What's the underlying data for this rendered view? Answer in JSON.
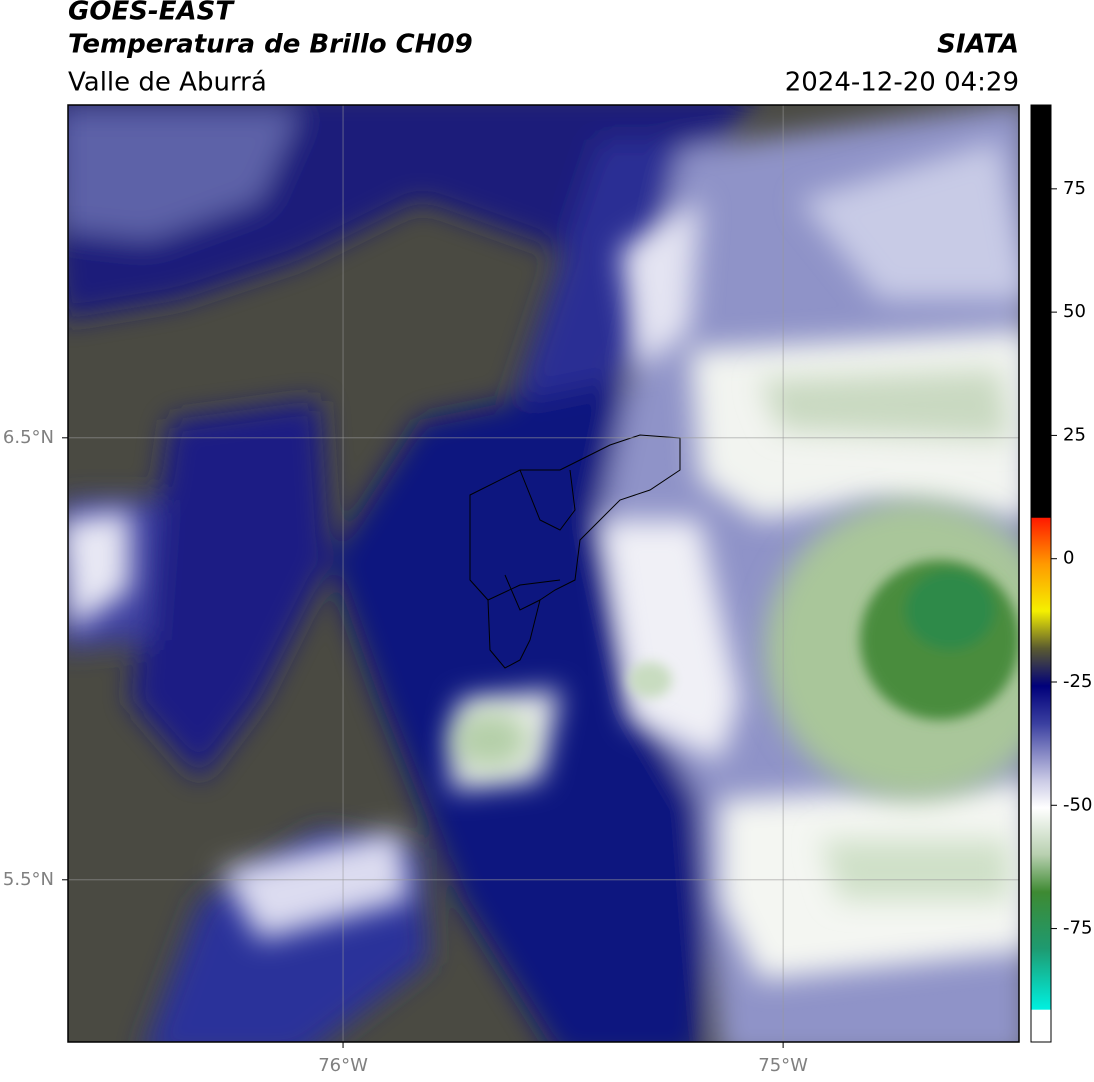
{
  "header": {
    "title": "GOES-EAST",
    "subtitle": "Temperatura de Brillo CH09",
    "region": "Valle de Aburrá",
    "source": "SIATA",
    "timestamp": "2024-12-20 04:29"
  },
  "map": {
    "lonlim": [
      -76.625,
      -74.464
    ],
    "latlim": [
      5.133,
      7.253
    ],
    "lonticks": [
      {
        "value": -76,
        "label": "76°W"
      },
      {
        "value": -75,
        "label": "75°W"
      }
    ],
    "latticks": [
      {
        "value": 6.5,
        "label": "6.5°N"
      },
      {
        "value": 5.5,
        "label": "5.5°N"
      }
    ]
  },
  "colorbar": {
    "lim": [
      -98,
      92
    ],
    "ticks": [
      75,
      50,
      25,
      0,
      -25,
      -50,
      -75
    ]
  }
}
